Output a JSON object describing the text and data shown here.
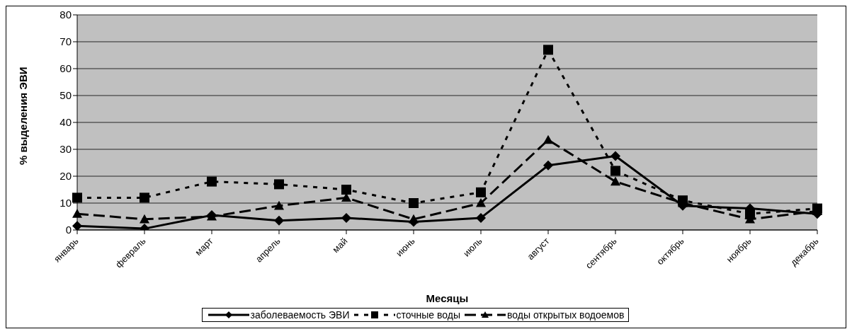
{
  "chart_data": {
    "type": "line",
    "xlabel": "Месяцы",
    "ylabel": "% выделения ЭВИ",
    "categories": [
      "январь",
      "февраль",
      "март",
      "апрель",
      "май",
      "июнь",
      "июль",
      "август",
      "сентябрь",
      "октябрь",
      "ноябрь",
      "декабрь"
    ],
    "series": [
      {
        "name": "заболеваемость ЭВИ",
        "color": "#000000",
        "marker": "diamond",
        "line_style": "solid",
        "values": [
          1.5,
          0.5,
          5.5,
          3.5,
          4.5,
          3,
          4.5,
          24,
          27.5,
          9,
          8,
          6
        ]
      },
      {
        "name": "сточные воды",
        "color": "#000000",
        "marker": "square",
        "line_style": "dotted",
        "values": [
          12,
          12,
          18,
          17,
          15,
          10,
          14,
          67,
          22,
          11,
          6,
          8
        ]
      },
      {
        "name": "воды открытых водоемов",
        "color": "#000000",
        "marker": "triangle",
        "line_style": "dashed",
        "values": [
          6,
          4,
          5,
          9,
          12,
          4,
          10,
          33.5,
          18,
          10,
          4,
          7
        ]
      }
    ],
    "ylim": [
      0,
      80
    ],
    "yticks": [
      0,
      10,
      20,
      30,
      40,
      50,
      60,
      70,
      80
    ],
    "grid": "y",
    "legend": "bottom"
  }
}
